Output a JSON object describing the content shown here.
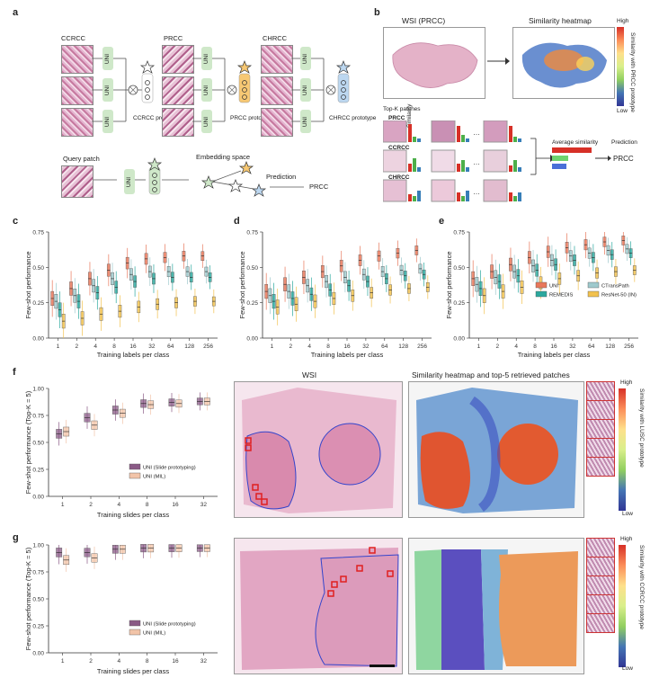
{
  "panels": {
    "a": {
      "letter": "a",
      "classes": [
        "CCRCC",
        "PRCC",
        "CHRCC"
      ],
      "uni_label": "UNI",
      "prototypes": [
        "CCRCC prototype",
        "PRCC prototype",
        "CHRCC prototype"
      ],
      "query_patch": "Query patch",
      "embedding_space": "Embedding space",
      "prediction_label": "Prediction",
      "prediction_value": "PRCC"
    },
    "b": {
      "letter": "b",
      "wsi_title": "WSI (PRCC)",
      "heatmap_title": "Similarity heatmap",
      "topk_label": "Top-K patches",
      "rows": [
        "PRCC",
        "CCRCC",
        "CHRCC"
      ],
      "similarity_label": "Similarity",
      "colorbar_high": "High",
      "colorbar_low": "Low",
      "colorbar_title": "Similarity with PRCC prototype",
      "avg_label": "Average similarity",
      "prediction_label": "Prediction",
      "prediction_value": "PRCC"
    },
    "c": {
      "letter": "c"
    },
    "d": {
      "letter": "d"
    },
    "e": {
      "letter": "e"
    },
    "f": {
      "letter": "f",
      "wsi_title": "WSI",
      "heatmap_title": "Similarity heatmap and top-5 retrieved patches",
      "colorbar_high": "High",
      "colorbar_low": "Low",
      "colorbar_title": "Similarity with LUSC prototype"
    },
    "g": {
      "letter": "g",
      "wsi_title": "WSI",
      "colorbar_high": "High",
      "colorbar_low": "Low",
      "colorbar_title": "Similarity with CCRCC prototype"
    }
  },
  "chart_data": [
    {
      "id": "c",
      "type": "box",
      "xlabel": "Training labels per class",
      "ylabel": "Few-shot performance",
      "categories": [
        "1",
        "2",
        "4",
        "8",
        "16",
        "32",
        "64",
        "128",
        "256"
      ],
      "ylim": [
        0,
        0.75
      ],
      "yticks": [
        0,
        0.25,
        0.5,
        0.75
      ],
      "series": [
        {
          "name": "UNI",
          "color": "#e8775a",
          "medians": [
            0.28,
            0.35,
            0.42,
            0.48,
            0.53,
            0.56,
            0.57,
            0.58,
            0.58
          ]
        },
        {
          "name": "CTransPath",
          "color": "#9ec9cc",
          "medians": [
            0.26,
            0.3,
            0.37,
            0.42,
            0.45,
            0.47,
            0.47,
            0.47,
            0.47
          ]
        },
        {
          "name": "REMEDIS",
          "color": "#2ba89e",
          "medians": [
            0.2,
            0.26,
            0.32,
            0.36,
            0.4,
            0.42,
            0.43,
            0.43,
            0.43
          ]
        },
        {
          "name": "ResNet-50 (IN)",
          "color": "#f2c14e",
          "medians": [
            0.12,
            0.14,
            0.17,
            0.19,
            0.22,
            0.24,
            0.25,
            0.26,
            0.26
          ]
        }
      ]
    },
    {
      "id": "d",
      "type": "box",
      "xlabel": "Training labels per class",
      "ylabel": "Few-shot performance",
      "categories": [
        "1",
        "2",
        "4",
        "8",
        "16",
        "32",
        "64",
        "128",
        "256"
      ],
      "ylim": [
        0,
        0.75
      ],
      "yticks": [
        0,
        0.25,
        0.5,
        0.75
      ],
      "series": [
        {
          "name": "UNI",
          "color": "#e8775a",
          "medians": [
            0.33,
            0.38,
            0.43,
            0.47,
            0.51,
            0.55,
            0.58,
            0.6,
            0.62
          ]
        },
        {
          "name": "CTransPath",
          "color": "#9ec9cc",
          "medians": [
            0.3,
            0.33,
            0.37,
            0.4,
            0.43,
            0.45,
            0.47,
            0.48,
            0.49
          ]
        },
        {
          "name": "REMEDIS",
          "color": "#2ba89e",
          "medians": [
            0.26,
            0.28,
            0.31,
            0.34,
            0.37,
            0.4,
            0.42,
            0.44,
            0.45
          ]
        },
        {
          "name": "ResNet-50 (IN)",
          "color": "#f2c14e",
          "medians": [
            0.22,
            0.24,
            0.26,
            0.28,
            0.3,
            0.32,
            0.34,
            0.35,
            0.36
          ]
        }
      ]
    },
    {
      "id": "e",
      "type": "box",
      "xlabel": "Training labels per class",
      "ylabel": "Few-shot performance",
      "categories": [
        "1",
        "2",
        "4",
        "8",
        "16",
        "32",
        "64",
        "128",
        "256"
      ],
      "ylim": [
        0,
        0.75
      ],
      "yticks": [
        0,
        0.25,
        0.5,
        0.75
      ],
      "legend": [
        "UNI",
        "CTransPath",
        "REMEDIS",
        "ResNet-50 (IN)"
      ],
      "series": [
        {
          "name": "UNI",
          "color": "#e8775a",
          "medians": [
            0.42,
            0.47,
            0.52,
            0.57,
            0.61,
            0.64,
            0.66,
            0.68,
            0.69
          ]
        },
        {
          "name": "CTransPath",
          "color": "#9ec9cc",
          "medians": [
            0.38,
            0.43,
            0.47,
            0.51,
            0.55,
            0.58,
            0.6,
            0.62,
            0.63
          ]
        },
        {
          "name": "REMEDIS",
          "color": "#2ba89e",
          "medians": [
            0.35,
            0.4,
            0.44,
            0.48,
            0.52,
            0.55,
            0.57,
            0.59,
            0.6
          ]
        },
        {
          "name": "ResNet-50 (IN)",
          "color": "#f2c14e",
          "medians": [
            0.3,
            0.33,
            0.36,
            0.39,
            0.42,
            0.44,
            0.46,
            0.47,
            0.48
          ]
        }
      ]
    },
    {
      "id": "f",
      "type": "box",
      "xlabel": "Training slides per class",
      "ylabel": "Few-shot performance (Top-K = 5)",
      "categories": [
        "1",
        "2",
        "4",
        "8",
        "16",
        "32"
      ],
      "ylim": [
        0,
        1.0
      ],
      "yticks": [
        0,
        0.25,
        0.5,
        0.75,
        1.0
      ],
      "legend": [
        "UNI (Slide prototyping)",
        "UNI (MIL)"
      ],
      "series": [
        {
          "name": "UNI (Slide prototyping)",
          "color": "#8a5a86",
          "medians": [
            0.58,
            0.73,
            0.8,
            0.86,
            0.87,
            0.88
          ]
        },
        {
          "name": "UNI (MIL)",
          "color": "#f2c4a8",
          "medians": [
            0.6,
            0.66,
            0.77,
            0.85,
            0.86,
            0.88
          ]
        }
      ]
    },
    {
      "id": "g",
      "type": "box",
      "xlabel": "Training slides per class",
      "ylabel": "Few-shot performance (Top-K = 5)",
      "categories": [
        "1",
        "2",
        "4",
        "8",
        "16",
        "32"
      ],
      "ylim": [
        0,
        1.0
      ],
      "yticks": [
        0,
        0.25,
        0.5,
        0.75,
        1.0
      ],
      "legend": [
        "UNI (Slide prototyping)",
        "UNI (MIL)"
      ],
      "series": [
        {
          "name": "UNI (Slide prototyping)",
          "color": "#8a5a86",
          "medians": [
            0.93,
            0.93,
            0.96,
            0.97,
            0.97,
            0.97
          ]
        },
        {
          "name": "UNI (MIL)",
          "color": "#f2c4a8",
          "medians": [
            0.86,
            0.88,
            0.96,
            0.97,
            0.97,
            0.97
          ]
        }
      ]
    }
  ]
}
